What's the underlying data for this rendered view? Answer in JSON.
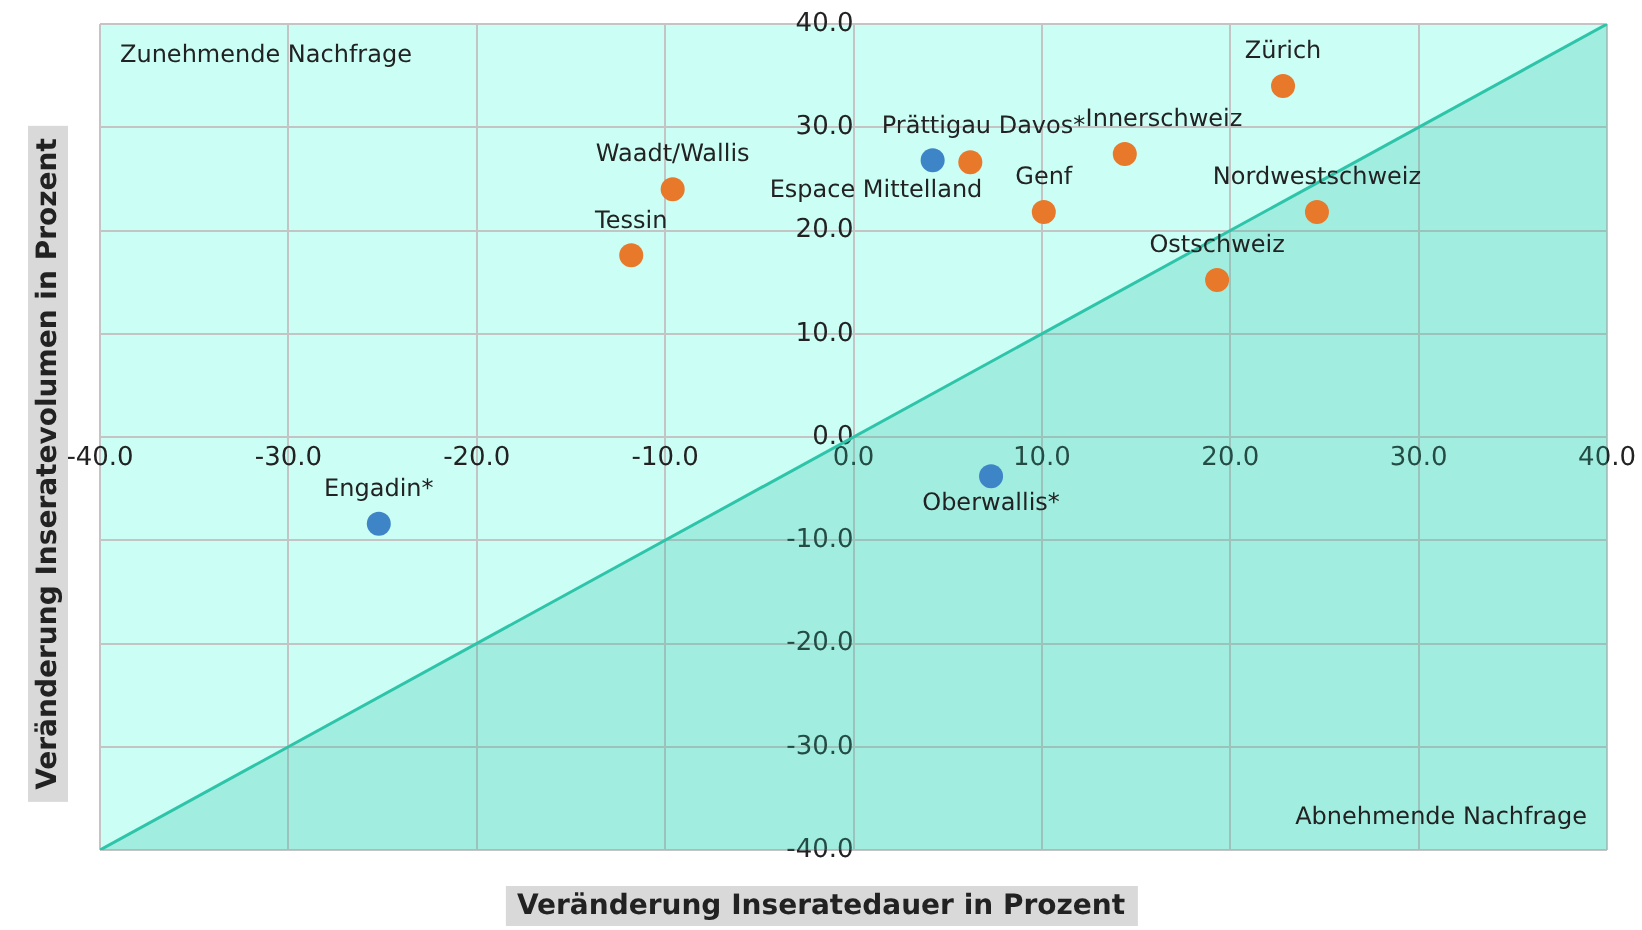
{
  "chart_data": {
    "type": "scatter",
    "xlabel": "Veränderung Inseratedauer in Prozent",
    "ylabel": "Veränderung Inseratevolumen in Prozent",
    "xlim": [
      -40,
      40
    ],
    "ylim": [
      -40,
      40
    ],
    "xticks": [
      {
        "value": -40,
        "label": "-40.0"
      },
      {
        "value": -30,
        "label": "-30.0"
      },
      {
        "value": -20,
        "label": "-20.0"
      },
      {
        "value": -10,
        "label": "-10.0"
      },
      {
        "value": 0,
        "label": "0.0"
      },
      {
        "value": 10,
        "label": "10.0"
      },
      {
        "value": 20,
        "label": "20.0"
      },
      {
        "value": 30,
        "label": "30.0"
      },
      {
        "value": 40,
        "label": "40.0"
      }
    ],
    "yticks": [
      {
        "value": -40,
        "label": "-40.0"
      },
      {
        "value": -30,
        "label": "-30.0"
      },
      {
        "value": -20,
        "label": "-20.0"
      },
      {
        "value": -10,
        "label": "-10.0"
      },
      {
        "value": 0,
        "label": "0.0"
      },
      {
        "value": 10,
        "label": "10.0"
      },
      {
        "value": 20,
        "label": "20.0"
      },
      {
        "value": 30,
        "label": "30.0"
      },
      {
        "value": 40,
        "label": "40.0"
      }
    ],
    "grid": true,
    "legend": false,
    "marker": "circle",
    "series": [
      {
        "type": "area",
        "marker": "none",
        "color": "#2ec4a9",
        "x": [
          -40,
          40
        ],
        "values": [
          -40,
          40
        ]
      },
      {
        "color": "#e8782a",
        "x": [
          -11.8,
          -9.6,
          6.2,
          10.1,
          14.4,
          22.8,
          24.6,
          19.3
        ],
        "values": [
          17.6,
          24,
          26.6,
          21.8,
          27.4,
          34,
          21.8,
          15.2
        ]
      },
      {
        "color": "#3d85c6",
        "x": [
          -25.2,
          4.2,
          7.3
        ],
        "values": [
          -8.4,
          26.8,
          -3.8
        ]
      }
    ],
    "annotations": [
      "Zunehmende Nachfrage",
      "Abnehmende Nachfrage",
      {
        "text": "Zürich",
        "x": 22.8,
        "y": 34
      },
      {
        "text": "Prättigau Davos*",
        "x": 4.2,
        "y": 26.8
      },
      {
        "text": "Innerschweiz",
        "x": 14.4,
        "y": 27.4
      },
      {
        "text": "Waadt/Wallis",
        "x": -9.6,
        "y": 24
      },
      {
        "text": "Tessin",
        "x": -11.8,
        "y": 17.6
      },
      {
        "text": "Genf",
        "x": 10.1,
        "y": 21.8
      },
      {
        "text": "Nordwestschweiz",
        "x": 24.6,
        "y": 21.8
      },
      {
        "text": "Espace Mittelland",
        "x": 6.2,
        "y": 26.6
      },
      {
        "text": "Ostschweiz",
        "x": 19.3,
        "y": 15.2
      },
      {
        "text": "Engadin*",
        "x": -25.2,
        "y": -8.4
      },
      {
        "text": "Oberwallis*",
        "x": 7.3,
        "y": -3.8
      }
    ]
  }
}
